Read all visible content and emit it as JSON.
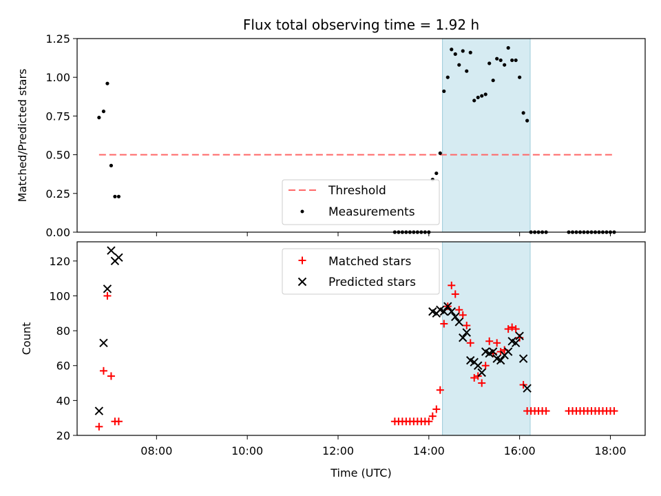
{
  "chart_data": [
    {
      "type": "scatter",
      "panel": "top",
      "title": "Flux total observing time = 1.92 h",
      "ylabel": "Matched/Predicted stars",
      "xlabel": "",
      "ylim": [
        0,
        1.25
      ],
      "yticks": [
        "0.00",
        "0.25",
        "0.50",
        "0.75",
        "1.00",
        "1.25"
      ],
      "shaded_region": {
        "x": [
          "14:18",
          "16:14"
        ],
        "color": "#add8e6"
      },
      "threshold": {
        "name": "Threshold",
        "value": 0.5,
        "x": [
          "06:44",
          "18:04"
        ],
        "color": "#ff6666"
      },
      "legend": {
        "placement": "lower center",
        "entries": [
          "Threshold",
          "Measurements"
        ]
      },
      "series": [
        {
          "name": "Measurements",
          "color": "#000000",
          "x": [
            "06:44",
            "06:50",
            "06:55",
            "07:00",
            "07:05",
            "07:10",
            "13:15",
            "13:20",
            "13:25",
            "13:30",
            "13:35",
            "13:40",
            "13:45",
            "13:50",
            "13:55",
            "14:00",
            "14:05",
            "14:10",
            "14:15",
            "14:20",
            "14:25",
            "14:30",
            "14:35",
            "14:40",
            "14:45",
            "14:50",
            "14:55",
            "15:00",
            "15:05",
            "15:10",
            "15:15",
            "15:20",
            "15:25",
            "15:30",
            "15:35",
            "15:40",
            "15:45",
            "15:50",
            "15:55",
            "16:00",
            "16:05",
            "16:10",
            "16:15",
            "16:20",
            "16:25",
            "16:30",
            "16:35",
            "17:05",
            "17:10",
            "17:15",
            "17:20",
            "17:25",
            "17:30",
            "17:35",
            "17:40",
            "17:45",
            "17:50",
            "17:55",
            "18:00",
            "18:05"
          ],
          "y": [
            0.74,
            0.78,
            0.96,
            0.43,
            0.23,
            0.23,
            0,
            0,
            0,
            0,
            0,
            0,
            0,
            0,
            0,
            0,
            0.34,
            0.38,
            0.51,
            0.91,
            1.0,
            1.18,
            1.15,
            1.08,
            1.17,
            1.04,
            1.16,
            0.85,
            0.87,
            0.88,
            0.89,
            1.09,
            0.98,
            1.12,
            1.11,
            1.08,
            1.19,
            1.11,
            1.11,
            1.0,
            0.77,
            0.72,
            0,
            0,
            0,
            0,
            0,
            0,
            0,
            0,
            0,
            0,
            0,
            0,
            0,
            0,
            0,
            0,
            0,
            0
          ]
        }
      ]
    },
    {
      "type": "scatter",
      "panel": "bottom",
      "xlabel": "Time (UTC)",
      "ylabel": "Count",
      "ylim": [
        20,
        131
      ],
      "yticks": [
        "20",
        "40",
        "60",
        "80",
        "100",
        "120"
      ],
      "xticks": [
        "08:00",
        "10:00",
        "12:00",
        "14:00",
        "16:00",
        "18:00"
      ],
      "shaded_region": {
        "x": [
          "14:18",
          "16:14"
        ],
        "color": "#add8e6"
      },
      "legend": {
        "placement": "upper center",
        "entries": [
          "Matched stars",
          "Predicted stars"
        ]
      },
      "series": [
        {
          "name": "Matched stars",
          "marker": "plus",
          "color": "#ff0000",
          "x": [
            "06:44",
            "06:50",
            "06:55",
            "07:00",
            "07:05",
            "07:10",
            "13:15",
            "13:20",
            "13:25",
            "13:30",
            "13:35",
            "13:40",
            "13:45",
            "13:50",
            "13:55",
            "14:00",
            "14:05",
            "14:10",
            "14:15",
            "14:20",
            "14:25",
            "14:30",
            "14:35",
            "14:40",
            "14:45",
            "14:50",
            "14:55",
            "15:00",
            "15:05",
            "15:10",
            "15:15",
            "15:20",
            "15:25",
            "15:30",
            "15:35",
            "15:40",
            "15:45",
            "15:50",
            "15:55",
            "16:00",
            "16:05",
            "16:10",
            "16:15",
            "16:20",
            "16:25",
            "16:30",
            "16:35",
            "17:05",
            "17:10",
            "17:15",
            "17:20",
            "17:25",
            "17:30",
            "17:35",
            "17:40",
            "17:45",
            "17:50",
            "17:55",
            "18:00",
            "18:05"
          ],
          "y": [
            25,
            57,
            100,
            54,
            28,
            28,
            28,
            28,
            28,
            28,
            28,
            28,
            28,
            28,
            28,
            28,
            31,
            35,
            46,
            84,
            94,
            106,
            101,
            92,
            89,
            83,
            73,
            53,
            54,
            50,
            60,
            74,
            67,
            73,
            68,
            69,
            81,
            82,
            81,
            76,
            49,
            34,
            34,
            34,
            34,
            34,
            34,
            34,
            34,
            34,
            34,
            34,
            34,
            34,
            34,
            34,
            34,
            34,
            34,
            34
          ]
        },
        {
          "name": "Predicted stars",
          "marker": "x",
          "color": "#000000",
          "x": [
            "06:44",
            "06:50",
            "06:55",
            "07:00",
            "07:05",
            "07:10",
            "14:05",
            "14:10",
            "14:15",
            "14:20",
            "14:25",
            "14:30",
            "14:35",
            "14:40",
            "14:45",
            "14:50",
            "14:55",
            "15:00",
            "15:05",
            "15:10",
            "15:15",
            "15:20",
            "15:25",
            "15:30",
            "15:35",
            "15:40",
            "15:45",
            "15:50",
            "15:55",
            "16:00",
            "16:05",
            "16:10"
          ],
          "y": [
            34,
            73,
            104,
            126,
            120,
            122,
            91,
            90,
            92,
            91,
            94,
            91,
            88,
            85,
            76,
            79,
            63,
            62,
            60,
            56,
            68,
            67,
            68,
            64,
            63,
            66,
            68,
            74,
            73,
            77,
            64,
            47
          ]
        }
      ]
    }
  ]
}
